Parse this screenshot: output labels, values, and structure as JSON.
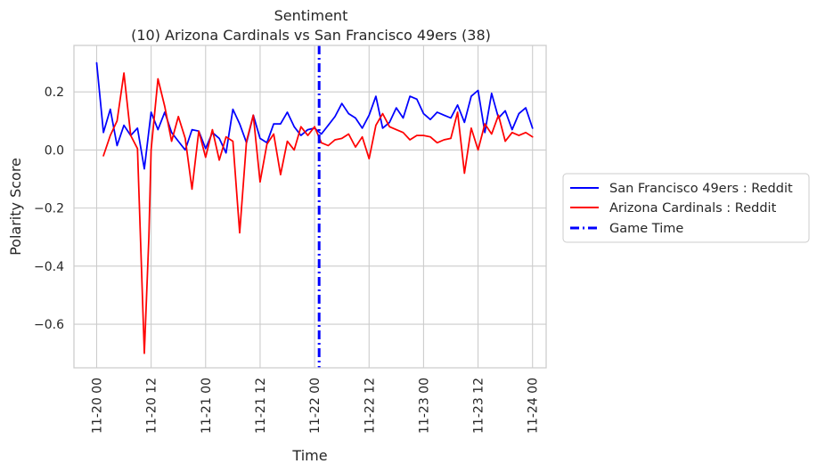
{
  "chart_data": {
    "type": "line",
    "title_line1": "Sentiment",
    "title_line2": "(10) Arizona Cardinals vs San Francisco 49ers (38)",
    "xlabel": "Time",
    "ylabel": "Polarity Score",
    "xlim_hours": [
      -5,
      99
    ],
    "ylim": [
      -0.75,
      0.36
    ],
    "grid": true,
    "legend_position": "right-outside",
    "x_ticks": [
      {
        "hours": 0,
        "label": "11-20 00"
      },
      {
        "hours": 12,
        "label": "11-20 12"
      },
      {
        "hours": 24,
        "label": "11-21 00"
      },
      {
        "hours": 36,
        "label": "11-21 12"
      },
      {
        "hours": 48,
        "label": "11-22 00"
      },
      {
        "hours": 60,
        "label": "11-22 12"
      },
      {
        "hours": 72,
        "label": "11-23 00"
      },
      {
        "hours": 84,
        "label": "11-23 12"
      },
      {
        "hours": 96,
        "label": "11-24 00"
      }
    ],
    "y_ticks": [
      {
        "value": 0.2,
        "label": "0.2"
      },
      {
        "value": 0.0,
        "label": "0.0"
      },
      {
        "value": -0.2,
        "label": "−0.2"
      },
      {
        "value": -0.4,
        "label": "−0.4"
      },
      {
        "value": -0.6,
        "label": "−0.6"
      }
    ],
    "game_time": {
      "name": "Game Time",
      "hours": 49,
      "color": "#0000ff"
    },
    "series": [
      {
        "name": "San Francisco 49ers : Reddit",
        "color": "#0000ff",
        "hours": [
          0,
          1.5,
          3,
          4.5,
          6,
          7.5,
          9,
          10.5,
          12,
          13.5,
          15,
          16.5,
          18,
          19.5,
          21,
          22.5,
          24,
          25.5,
          27,
          28.5,
          30,
          31.5,
          33,
          34.5,
          36,
          37.5,
          39,
          40.5,
          42,
          43.5,
          45,
          46.5,
          48,
          49.5,
          51,
          52.5,
          54,
          55.5,
          57,
          58.5,
          60,
          61.5,
          63,
          64.5,
          66,
          67.5,
          69,
          70.5,
          72,
          73.5,
          75,
          76.5,
          78,
          79.5,
          81,
          82.5,
          84,
          85.5,
          87,
          88.5,
          90,
          91.5,
          93,
          94.5,
          96
        ],
        "values": [
          0.3,
          0.06,
          0.14,
          0.015,
          0.085,
          0.05,
          0.075,
          -0.065,
          0.13,
          0.07,
          0.13,
          0.06,
          0.03,
          0.0,
          0.07,
          0.065,
          0.005,
          0.06,
          0.04,
          -0.01,
          0.14,
          0.09,
          0.025,
          0.12,
          0.04,
          0.025,
          0.09,
          0.09,
          0.13,
          0.08,
          0.05,
          0.07,
          0.075,
          0.055,
          0.085,
          0.115,
          0.16,
          0.125,
          0.11,
          0.075,
          0.12,
          0.185,
          0.075,
          0.095,
          0.145,
          0.11,
          0.185,
          0.175,
          0.125,
          0.105,
          0.13,
          0.12,
          0.11,
          0.155,
          0.095,
          0.185,
          0.205,
          0.06,
          0.195,
          0.11,
          0.135,
          0.07,
          0.125,
          0.145,
          0.075
        ]
      },
      {
        "name": "Arizona Cardinals : Reddit",
        "color": "#ff0000",
        "hours": [
          1.5,
          3,
          4.5,
          6,
          7.5,
          9,
          10.5,
          11.5,
          12,
          13.5,
          15,
          16.5,
          18,
          19.5,
          21,
          22.5,
          24,
          25.5,
          27,
          28.5,
          30,
          31.5,
          33,
          34.5,
          36,
          37.5,
          39,
          40.5,
          42,
          43.5,
          45,
          46.5,
          48,
          49.5,
          51,
          52.5,
          54,
          55.5,
          57,
          58.5,
          60,
          61.5,
          63,
          64.5,
          66,
          67.5,
          69,
          70.5,
          72,
          73.5,
          75,
          76.5,
          78,
          79.5,
          81,
          82.5,
          84,
          85.5,
          87,
          88.5,
          90,
          91.5,
          93,
          94.5,
          96
        ],
        "values": [
          -0.02,
          0.05,
          0.1,
          0.265,
          0.05,
          0.005,
          -0.7,
          -0.3,
          0.0,
          0.245,
          0.15,
          0.03,
          0.115,
          0.04,
          -0.135,
          0.065,
          -0.025,
          0.07,
          -0.035,
          0.045,
          0.03,
          -0.285,
          0.03,
          0.12,
          -0.11,
          0.02,
          0.055,
          -0.085,
          0.03,
          0.0,
          0.08,
          0.05,
          0.08,
          0.025,
          0.015,
          0.035,
          0.04,
          0.055,
          0.01,
          0.045,
          -0.03,
          0.085,
          0.125,
          0.08,
          0.07,
          0.06,
          0.035,
          0.05,
          0.05,
          0.045,
          0.025,
          0.035,
          0.04,
          0.13,
          -0.08,
          0.075,
          0.0,
          0.09,
          0.055,
          0.12,
          0.03,
          0.06,
          0.05,
          0.06,
          0.045
        ]
      }
    ]
  }
}
